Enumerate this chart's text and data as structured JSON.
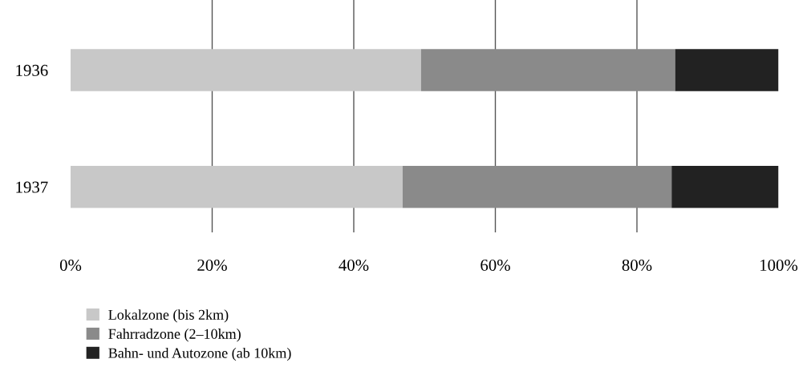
{
  "chart_data": {
    "type": "bar",
    "orientation": "horizontal",
    "stacked": true,
    "categories": [
      "1936",
      "1937"
    ],
    "series": [
      {
        "name": "Lokalzone (bis 2km)",
        "color": "#c8c8c8",
        "values": [
          49.5,
          46.9
        ]
      },
      {
        "name": "Fahrradzone (2–10km)",
        "color": "#8a8a8a",
        "values": [
          35.9,
          38.0
        ]
      },
      {
        "name": "Bahn- und Autozone (ab 10km)",
        "color": "#222222",
        "values": [
          14.6,
          15.1
        ]
      }
    ],
    "xlim": [
      0,
      100
    ],
    "xticks": [
      {
        "value": 0,
        "label": "0%"
      },
      {
        "value": 20,
        "label": "20%"
      },
      {
        "value": 40,
        "label": "40%"
      },
      {
        "value": 60,
        "label": "60%"
      },
      {
        "value": 80,
        "label": "80%"
      },
      {
        "value": 100,
        "label": "100%"
      }
    ],
    "grid": "x",
    "legend": "bottom left"
  }
}
